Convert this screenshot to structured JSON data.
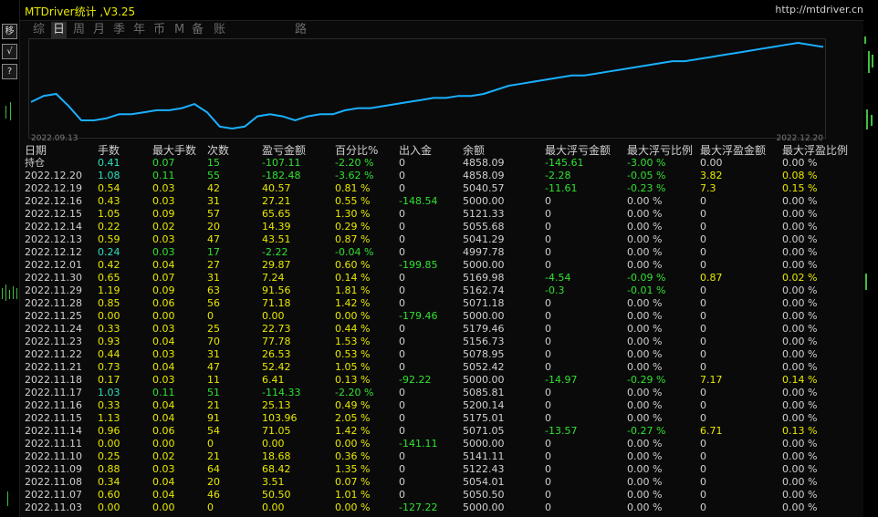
{
  "title": "MTDriver统计 ,V3.25",
  "url": "http://mtdriver.cn",
  "left_tools": [
    {
      "icon": "transfer-icon",
      "glyph": "移"
    },
    {
      "icon": "check-icon",
      "glyph": "√"
    },
    {
      "icon": "help-icon",
      "glyph": "?"
    }
  ],
  "tabs": [
    "综",
    "日",
    "周",
    "月",
    "季",
    "年",
    "币",
    "M",
    "备",
    "账户",
    "路径"
  ],
  "active_tab": 1,
  "chart": {
    "start_date": "2022.09.13",
    "end_date": "2022.12.20",
    "line_color": "#1ab0ff",
    "points": [
      55,
      58,
      59,
      53,
      46,
      46,
      47,
      49,
      49,
      50,
      51,
      51,
      52,
      54,
      50,
      43,
      42,
      43,
      48,
      49,
      48,
      46,
      48,
      49,
      49,
      51,
      52,
      52,
      53,
      54,
      55,
      56,
      57,
      57,
      58,
      58,
      59,
      61,
      63,
      64,
      65,
      66,
      67,
      68,
      68,
      69,
      70,
      71,
      72,
      73,
      74,
      75,
      75,
      76,
      77,
      78,
      79,
      80,
      81,
      82,
      83,
      84,
      83,
      82
    ]
  },
  "columns": [
    "日期",
    "手数",
    "最大手数",
    "次数",
    "盈亏金额",
    "百分比%",
    "出入金",
    "余额",
    "最大浮亏金额",
    "最大浮亏比例",
    "最大浮盈金额",
    "最大浮盈比例"
  ],
  "rows": [
    [
      "持仓",
      "0.41",
      "0.07",
      "15",
      "-107.11",
      "-2.20 %",
      "0",
      "4858.09",
      "-145.61",
      "-3.00 %",
      "0.00",
      "0.00 %"
    ],
    [
      "2022.12.20",
      "1.08",
      "0.11",
      "55",
      "-182.48",
      "-3.62 %",
      "0",
      "4858.09",
      "-2.28",
      "-0.05 %",
      "3.82",
      "0.08 %"
    ],
    [
      "2022.12.19",
      "0.54",
      "0.03",
      "42",
      "40.57",
      "0.81 %",
      "0",
      "5040.57",
      "-11.61",
      "-0.23 %",
      "7.3",
      "0.15 %"
    ],
    [
      "2022.12.16",
      "0.43",
      "0.03",
      "31",
      "27.21",
      "0.55 %",
      "-148.54",
      "5000.00",
      "0",
      "0.00 %",
      "0",
      "0.00 %"
    ],
    [
      "2022.12.15",
      "1.05",
      "0.09",
      "57",
      "65.65",
      "1.30 %",
      "0",
      "5121.33",
      "0",
      "0.00 %",
      "0",
      "0.00 %"
    ],
    [
      "2022.12.14",
      "0.22",
      "0.02",
      "20",
      "14.39",
      "0.29 %",
      "0",
      "5055.68",
      "0",
      "0.00 %",
      "0",
      "0.00 %"
    ],
    [
      "2022.12.13",
      "0.59",
      "0.03",
      "47",
      "43.51",
      "0.87 %",
      "0",
      "5041.29",
      "0",
      "0.00 %",
      "0",
      "0.00 %"
    ],
    [
      "2022.12.12",
      "0.24",
      "0.03",
      "17",
      "-2.22",
      "-0.04 %",
      "0",
      "4997.78",
      "0",
      "0.00 %",
      "0",
      "0.00 %"
    ],
    [
      "2022.12.01",
      "0.42",
      "0.04",
      "27",
      "29.87",
      "0.60 %",
      "-199.85",
      "5000.00",
      "0",
      "0.00 %",
      "0",
      "0.00 %"
    ],
    [
      "2022.11.30",
      "0.65",
      "0.07",
      "31",
      "7.24",
      "0.14 %",
      "0",
      "5169.98",
      "-4.54",
      "-0.09 %",
      "0.87",
      "0.02 %"
    ],
    [
      "2022.11.29",
      "1.19",
      "0.09",
      "63",
      "91.56",
      "1.81 %",
      "0",
      "5162.74",
      "-0.3",
      "-0.01 %",
      "0",
      "0.00 %"
    ],
    [
      "2022.11.28",
      "0.85",
      "0.06",
      "56",
      "71.18",
      "1.42 %",
      "0",
      "5071.18",
      "0",
      "0.00 %",
      "0",
      "0.00 %"
    ],
    [
      "2022.11.25",
      "0.00",
      "0.00",
      "0",
      "0.00",
      "0.00 %",
      "-179.46",
      "5000.00",
      "0",
      "0.00 %",
      "0",
      "0.00 %"
    ],
    [
      "2022.11.24",
      "0.33",
      "0.03",
      "25",
      "22.73",
      "0.44 %",
      "0",
      "5179.46",
      "0",
      "0.00 %",
      "0",
      "0.00 %"
    ],
    [
      "2022.11.23",
      "0.93",
      "0.04",
      "70",
      "77.78",
      "1.53 %",
      "0",
      "5156.73",
      "0",
      "0.00 %",
      "0",
      "0.00 %"
    ],
    [
      "2022.11.22",
      "0.44",
      "0.03",
      "31",
      "26.53",
      "0.53 %",
      "0",
      "5078.95",
      "0",
      "0.00 %",
      "0",
      "0.00 %"
    ],
    [
      "2022.11.21",
      "0.73",
      "0.04",
      "47",
      "52.42",
      "1.05 %",
      "0",
      "5052.42",
      "0",
      "0.00 %",
      "0",
      "0.00 %"
    ],
    [
      "2022.11.18",
      "0.17",
      "0.03",
      "11",
      "6.41",
      "0.13 %",
      "-92.22",
      "5000.00",
      "-14.97",
      "-0.29 %",
      "7.17",
      "0.14 %"
    ],
    [
      "2022.11.17",
      "1.03",
      "0.11",
      "51",
      "-114.33",
      "-2.20 %",
      "0",
      "5085.81",
      "0",
      "0.00 %",
      "0",
      "0.00 %"
    ],
    [
      "2022.11.16",
      "0.33",
      "0.04",
      "21",
      "25.13",
      "0.49 %",
      "0",
      "5200.14",
      "0",
      "0.00 %",
      "0",
      "0.00 %"
    ],
    [
      "2022.11.15",
      "1.13",
      "0.04",
      "91",
      "103.96",
      "2.05 %",
      "0",
      "5175.01",
      "0",
      "0.00 %",
      "0",
      "0.00 %"
    ],
    [
      "2022.11.14",
      "0.96",
      "0.06",
      "54",
      "71.05",
      "1.42 %",
      "0",
      "5071.05",
      "-13.57",
      "-0.27 %",
      "6.71",
      "0.13 %"
    ],
    [
      "2022.11.11",
      "0.00",
      "0.00",
      "0",
      "0.00",
      "0.00 %",
      "-141.11",
      "5000.00",
      "0",
      "0.00 %",
      "0",
      "0.00 %"
    ],
    [
      "2022.11.10",
      "0.25",
      "0.02",
      "21",
      "18.68",
      "0.36 %",
      "0",
      "5141.11",
      "0",
      "0.00 %",
      "0",
      "0.00 %"
    ],
    [
      "2022.11.09",
      "0.88",
      "0.03",
      "64",
      "68.42",
      "1.35 %",
      "0",
      "5122.43",
      "0",
      "0.00 %",
      "0",
      "0.00 %"
    ],
    [
      "2022.11.08",
      "0.34",
      "0.04",
      "20",
      "3.51",
      "0.07 %",
      "0",
      "5054.01",
      "0",
      "0.00 %",
      "0",
      "0.00 %"
    ],
    [
      "2022.11.07",
      "0.60",
      "0.04",
      "46",
      "50.50",
      "1.01 %",
      "0",
      "5050.50",
      "0",
      "0.00 %",
      "0",
      "0.00 %"
    ],
    [
      "2022.11.03",
      "0.00",
      "0.00",
      "0",
      "0.00",
      "0.00 %",
      "-127.22",
      "5000.00",
      "0",
      "0.00 %",
      "0",
      "0.00 %"
    ]
  ]
}
